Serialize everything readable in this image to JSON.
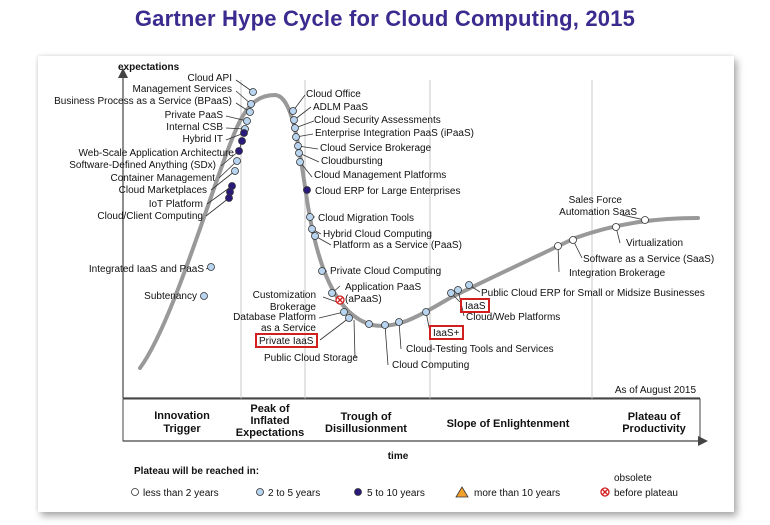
{
  "title": "Gartner Hype Cycle for Cloud Computing, 2015",
  "axes": {
    "y_label": "expectations",
    "x_label": "time"
  },
  "as_of": "As of August 2015",
  "phases": [
    [
      "Innovation",
      "Trigger"
    ],
    [
      "Peak of",
      "Inflated",
      "Expectations"
    ],
    [
      "Trough of",
      "Disillusionment"
    ],
    [
      "Slope of Enlightenment"
    ],
    [
      "Plateau of",
      "Productivity"
    ]
  ],
  "labels": {
    "cloud_api": "Cloud API",
    "mgmt_services": "Management Services",
    "bpaas": "Business Process as a Service (BPaaS)",
    "private_paas": "Private PaaS",
    "internal_csb": "Internal CSB",
    "hybrid_it": "Hybrid IT",
    "web_scale": "Web-Scale Application Architecture",
    "sdx": "Software-Defined Anything (SDx)",
    "container_mgmt": "Container Management",
    "cloud_marketplaces": "Cloud Marketplaces",
    "iot_platform": "IoT Platform",
    "cloud_client": "Cloud/Client Computing",
    "integrated_iaas_paas": "Integrated IaaS and PaaS",
    "subtenancy": "Subtenancy",
    "cloud_office": "Cloud Office",
    "adlm_paas": "ADLM PaaS",
    "cloud_security": "Cloud Security Assessments",
    "ipaas": "Enterprise Integration PaaS (iPaaS)",
    "csb": "Cloud Service Brokerage",
    "cloudbursting": "Cloudbursting",
    "cloud_mgmt_platforms": "Cloud Management Platforms",
    "cloud_erp_large": "Cloud ERP for Large Enterprises",
    "migration_tools": "Cloud Migration Tools",
    "hybrid_cloud": "Hybrid Cloud Computing",
    "paas": "Platform as a Service (PaaS)",
    "private_cloud": "Private Cloud Computing",
    "apaas_1": "Application PaaS",
    "apaas_2": "(aPaaS)",
    "custom_brokerage_1": "Customization",
    "custom_brokerage_2": "Brokerage",
    "database_platform_1": "Database Platform",
    "database_platform_2": "as a Service",
    "private_iaas": "Private IaaS",
    "public_storage": "Public Cloud Storage",
    "cloud_computing": "Cloud Computing",
    "testing_tools": "Cloud-Testing Tools and Services",
    "iaas_plus": "IaaS+",
    "iaas": "IaaS",
    "web_platforms": "Cloud/Web Platforms",
    "public_erp": "Public Cloud ERP for Small or Midsize Businesses",
    "integration_brokerage": "Integration Brokerage",
    "saas": "Software as a Service (SaaS)",
    "virtualization": "Virtualization",
    "salesforce_1": "Sales Force",
    "salesforce_2": "Automation SaaS"
  },
  "legend": {
    "title": "Plateau will be reached in:",
    "less_2": "less than 2 years",
    "two_5": "2 to 5 years",
    "five_10": "5 to 10 years",
    "more_10": "more than 10 years",
    "obsolete_1": "obsolete",
    "obsolete_2": "before plateau"
  },
  "colors": {
    "title": "#3b2b8f",
    "curve": "#999999",
    "dot_light_blue": "#b8d4ef",
    "dot_dark": "#2b1a7a",
    "dot_white": "#ffffff",
    "highlight": "#d21f1f",
    "triangle": "#f2a22b"
  }
}
